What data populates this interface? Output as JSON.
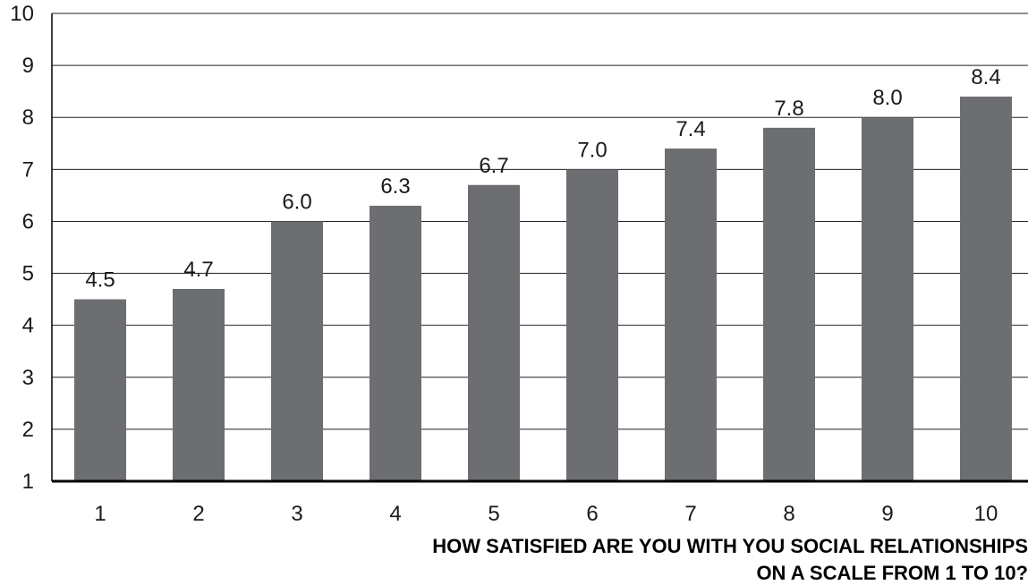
{
  "chart_data": {
    "type": "bar",
    "categories": [
      "1",
      "2",
      "3",
      "4",
      "5",
      "6",
      "7",
      "8",
      "9",
      "10"
    ],
    "values": [
      4.5,
      4.7,
      6.0,
      6.3,
      6.7,
      7.0,
      7.4,
      7.8,
      8.0,
      8.4
    ],
    "data_labels": [
      "4.5",
      "4.7",
      "6.0",
      "6.3",
      "6.7",
      "7.0",
      "7.4",
      "7.8",
      "8.0",
      "8.4"
    ],
    "y_ticks": [
      "1",
      "2",
      "3",
      "4",
      "5",
      "6",
      "7",
      "8",
      "9",
      "10"
    ],
    "ylim": [
      1,
      10
    ],
    "xlabel_lines": [
      "HOW SATISFIED ARE YOU WITH YOU SOCIAL RELATIONSHIPS",
      "ON A SCALE FROM 1 TO 10?"
    ],
    "ylabel": "",
    "title": "",
    "grid": true,
    "bar_color": "#6d6e71",
    "grid_color": "#231f20"
  }
}
